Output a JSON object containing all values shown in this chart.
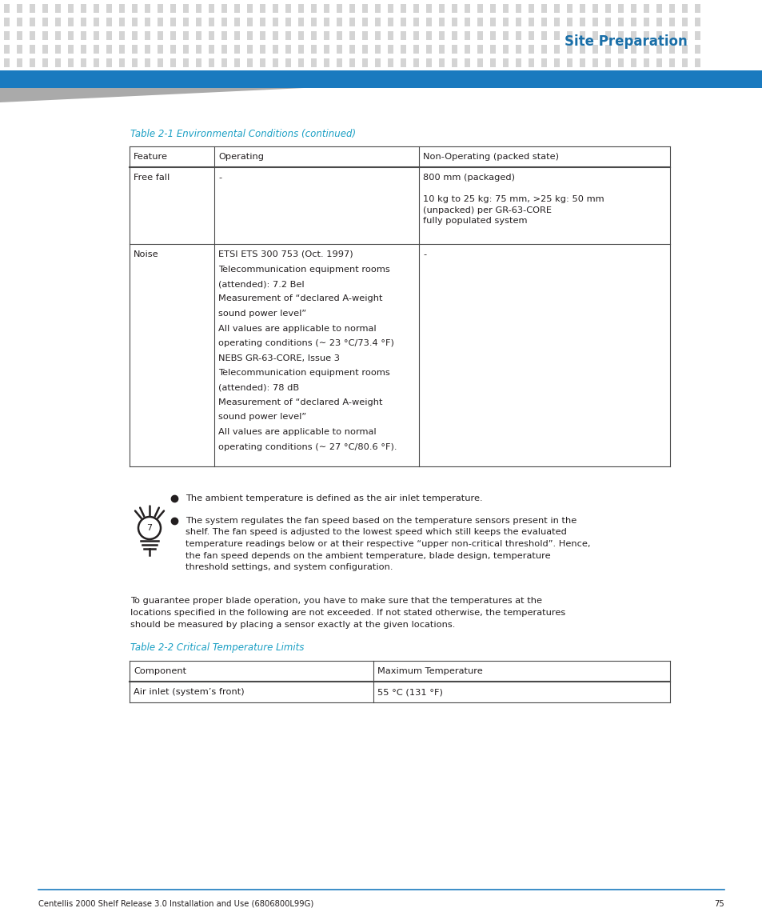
{
  "page_bg": "#ffffff",
  "header_dot_color": "#d4d4d4",
  "header_blue_bar_color": "#1a7abf",
  "header_title": "Site Preparation",
  "header_title_color": "#1a6fa8",
  "table1_title": "Table 2-1 Environmental Conditions (continued)",
  "table1_title_color": "#1a9fc4",
  "table1_headers": [
    "Feature",
    "Operating",
    "Non-Operating (packed state)"
  ],
  "table1_rows_r1_col0": "Free fall",
  "table1_rows_r1_col1": "-",
  "table1_rows_r1_col2_lines": [
    "800 mm (packaged)",
    "",
    "10 kg to 25 kg: 75 mm, >25 kg: 50 mm",
    "(unpacked) per GR-63-CORE",
    "fully populated system"
  ],
  "table1_rows_r2_col0": "Noise",
  "table1_rows_r2_col1_lines": [
    "ETSI ETS 300 753 (Oct. 1997)",
    "Telecommunication equipment rooms",
    "(attended): 7.2 Bel",
    "Measurement of “declared A-weight",
    "sound power level”",
    "All values are applicable to normal",
    "operating conditions (∼ 23 °C/73.4 °F)",
    "NEBS GR-63-CORE, Issue 3",
    "Telecommunication equipment rooms",
    "(attended): 78 dB",
    "Measurement of “declared A-weight",
    "sound power level”",
    "All values are applicable to normal",
    "operating conditions (∼ 27 °C/80.6 °F)."
  ],
  "table1_rows_r2_col2": "-",
  "note_bullet1": "The ambient temperature is defined as the air inlet temperature.",
  "note_bullet2_lines": [
    "The system regulates the fan speed based on the temperature sensors present in the",
    "shelf. The fan speed is adjusted to the lowest speed which still keeps the evaluated",
    "temperature readings below or at their respective “upper non-critical threshold”. Hence,",
    "the fan speed depends on the ambient temperature, blade design, temperature",
    "threshold settings, and system configuration."
  ],
  "para_lines": [
    "To guarantee proper blade operation, you have to make sure that the temperatures at the",
    "locations specified in the following are not exceeded. If not stated otherwise, the temperatures",
    "should be measured by placing a sensor exactly at the given locations."
  ],
  "table2_title": "Table 2-2 Critical Temperature Limits",
  "table2_title_color": "#1a9fc4",
  "table2_headers": [
    "Component",
    "Maximum Temperature"
  ],
  "table2_row_col0": "Air inlet (system’s front)",
  "table2_row_col1": "55 °C (131 °F)",
  "footer_text": "Centellis 2000 Shelf Release 3.0 Installation and Use (6806800L99G)",
  "footer_page": "75",
  "footer_line_color": "#1a7abf",
  "text_color": "#231f20",
  "table_border_color": "#4a4a4a",
  "body_font_size": 8.2
}
